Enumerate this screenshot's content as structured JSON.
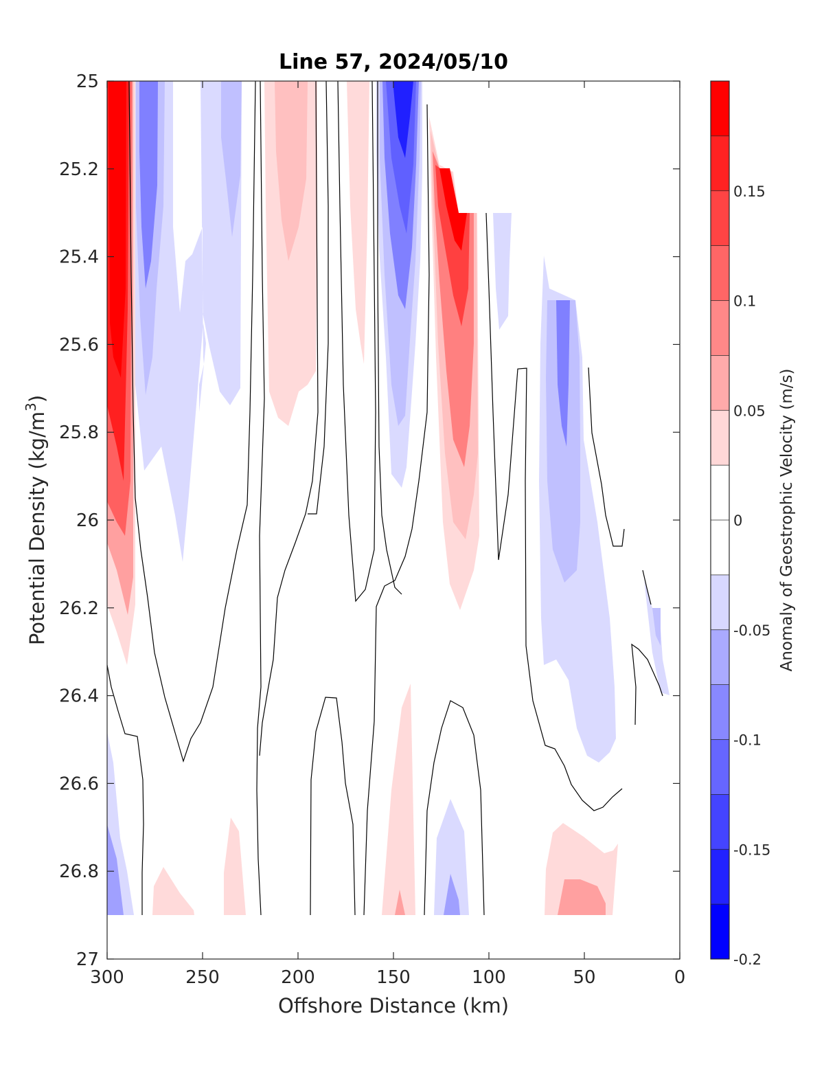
{
  "chart_data": {
    "type": "heatmap",
    "title": "Line 57, 2024/05/10",
    "xlabel": "Offshore Distance (km)",
    "ylabel": "Potential Density (kg/m³)",
    "ylabel_main": "Potential Density (kg/m",
    "ylabel_sup": "3",
    "ylabel_close": ")",
    "xlim": [
      300,
      0
    ],
    "ylim": [
      25,
      27
    ],
    "y_reversed": true,
    "x_reversed": true,
    "x_ticks": [
      300,
      250,
      200,
      150,
      100,
      50,
      0
    ],
    "y_ticks": [
      25,
      25.2,
      25.4,
      25.6,
      25.8,
      26,
      26.2,
      26.4,
      26.6,
      26.8,
      27
    ],
    "colorbar": {
      "label": "Anomaly of Geostrophic Velocity (m/s)",
      "range": [
        -0.2,
        0.2
      ],
      "ticks": [
        -0.2,
        -0.15,
        -0.1,
        -0.05,
        0,
        0.05,
        0.1,
        0.15
      ],
      "levels": [
        -0.2,
        -0.175,
        -0.15,
        -0.125,
        -0.1,
        -0.075,
        -0.05,
        -0.025,
        0.025,
        0.05,
        0.075,
        0.1,
        0.125,
        0.15,
        0.175,
        0.2
      ],
      "colors": [
        "#0000ff",
        "#2020ff",
        "#4040ff",
        "#6060ff",
        "#8080ff",
        "#a0a0ff",
        "#c0c0ff",
        "#dadaff",
        "#ffffff",
        "#ffdada",
        "#ffc0c0",
        "#ffa0a0",
        "#ff8080",
        "#ff6060",
        "#ff4040",
        "#ff2020",
        "#ff0000"
      ]
    },
    "features": [
      {
        "name": "core-300km",
        "peak": 0.19,
        "x_range": [
          300,
          286
        ],
        "y_range": [
          25,
          26.35
        ]
      },
      {
        "name": "band-278km",
        "peak": -0.09,
        "x_range": [
          285,
          265
        ],
        "y_range": [
          25,
          26.1
        ]
      },
      {
        "name": "band-235km",
        "peak": -0.07,
        "x_range": [
          255,
          220
        ],
        "y_range": [
          25,
          25.75
        ]
      },
      {
        "name": "band-200km",
        "peak": 0.09,
        "x_range": [
          215,
          185
        ],
        "y_range": [
          25,
          25.8
        ]
      },
      {
        "name": "band-168km",
        "peak": 0.05,
        "x_range": [
          175,
          160
        ],
        "y_range": [
          25,
          25.65
        ]
      },
      {
        "name": "core-145km",
        "peak": -0.17,
        "x_range": [
          160,
          130
        ],
        "y_range": [
          25,
          25.95
        ]
      },
      {
        "name": "core-115km",
        "peak": 0.16,
        "x_range": [
          130,
          105
        ],
        "y_range": [
          25.1,
          26.2
        ]
      },
      {
        "name": "band-60km",
        "peak": -0.1,
        "x_range": [
          75,
          30
        ],
        "y_range": [
          25.4,
          26.55
        ]
      },
      {
        "name": "deep-145km",
        "peak": 0.06,
        "x_range": [
          160,
          138
        ],
        "y_range": [
          26.35,
          26.9
        ]
      },
      {
        "name": "deep-120km",
        "peak": -0.08,
        "x_range": [
          130,
          110
        ],
        "y_range": [
          26.65,
          26.9
        ]
      },
      {
        "name": "deep-55km",
        "peak": 0.08,
        "x_range": [
          72,
          35
        ],
        "y_range": [
          26.7,
          26.9
        ]
      },
      {
        "name": "deep-300km",
        "peak": -0.09,
        "x_range": [
          300,
          290
        ],
        "y_range": [
          26.5,
          26.9
        ]
      }
    ]
  }
}
